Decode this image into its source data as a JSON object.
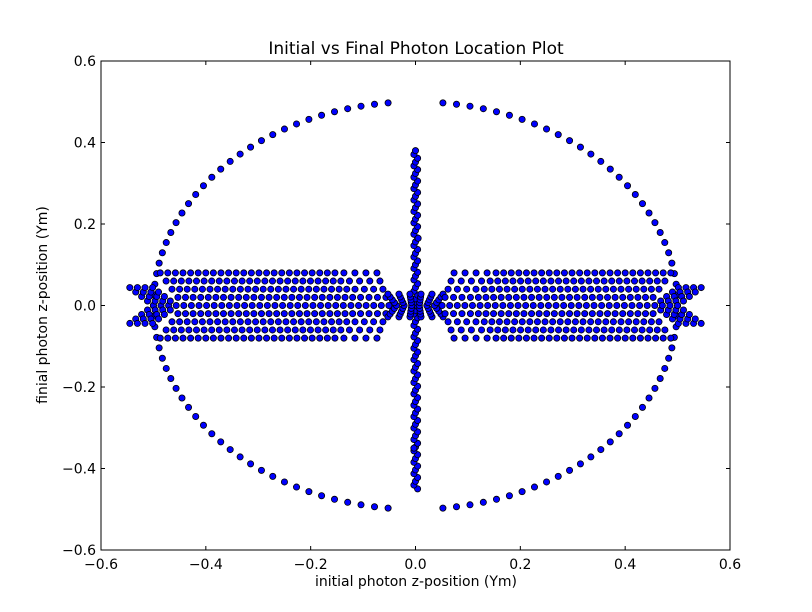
{
  "chart_data": {
    "type": "scatter",
    "title": "Initial vs Final Photon Location Plot",
    "xlabel": "initial photon z-position (Ym)",
    "ylabel": "finial photon z-position (Ym)",
    "xlim": [
      -0.6,
      0.6
    ],
    "ylim": [
      -0.6,
      0.6
    ],
    "xticks": [
      "−0.6",
      "−0.4",
      "−0.2",
      "0.0",
      "0.2",
      "0.4",
      "0.6"
    ],
    "yticks": [
      "−0.6",
      "−0.4",
      "−0.2",
      "0.0",
      "0.2",
      "0.4",
      "0.6"
    ],
    "xtick_values": [
      -0.6,
      -0.4,
      -0.2,
      0.0,
      0.2,
      0.4,
      0.6
    ],
    "ytick_values": [
      -0.6,
      -0.4,
      -0.2,
      0.0,
      0.2,
      0.4,
      0.6
    ],
    "grid": false,
    "legend": "none",
    "marker_color": "#0000ff",
    "marker_edge": "#000000",
    "series": [
      {
        "pattern": "outer-ring",
        "shape": "ellipse",
        "center": [
          0.0,
          0.0
        ],
        "x_radius": 0.5,
        "y_radius": 0.5,
        "point_count": 120,
        "gap_at_top_and_bottom_x": [
          -0.03,
          0.03
        ]
      },
      {
        "pattern": "vertical-spine",
        "x": 0.0,
        "y_range": [
          -0.45,
          0.38
        ],
        "point_count": 90
      },
      {
        "pattern": "central-fan-band",
        "x_range": [
          -0.5,
          0.5
        ],
        "max_height": 0.08,
        "column_count": 70,
        "points_per_column": 9
      }
    ]
  }
}
